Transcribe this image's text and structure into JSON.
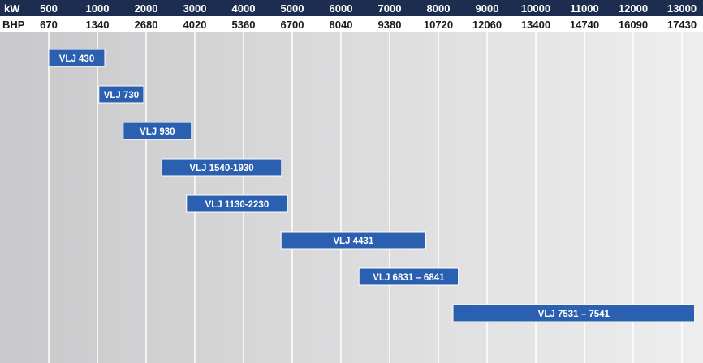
{
  "chart_data": {
    "type": "bar",
    "orientation": "horizontal-range",
    "axes": {
      "kw": {
        "label": "kW",
        "ticks": [
          "500",
          "1000",
          "2000",
          "3000",
          "4000",
          "5000",
          "6000",
          "7000",
          "8000",
          "9000",
          "10000",
          "11000",
          "12000",
          "13000"
        ]
      },
      "bhp": {
        "label": "BHP",
        "ticks": [
          "670",
          "1340",
          "2680",
          "4020",
          "5360",
          "6700",
          "8040",
          "9380",
          "10720",
          "12060",
          "13400",
          "14740",
          "16090",
          "17430"
        ]
      }
    },
    "series": [
      {
        "name": "VLJ 430",
        "start_kw": 500,
        "end_kw": 1150
      },
      {
        "name": "VLJ 730",
        "start_kw": 1030,
        "end_kw": 1950
      },
      {
        "name": "VLJ 930",
        "start_kw": 1530,
        "end_kw": 2930
      },
      {
        "name": "VLJ 1540-1930",
        "start_kw": 2320,
        "end_kw": 4780
      },
      {
        "name": "VLJ 1130-2230",
        "start_kw": 2830,
        "end_kw": 4900
      },
      {
        "name": "VLJ 4431",
        "start_kw": 4770,
        "end_kw": 7740
      },
      {
        "name": "VLJ 6831 – 6841",
        "start_kw": 6370,
        "end_kw": 8410
      },
      {
        "name": "VLJ 7531 – 7541",
        "start_kw": 8300,
        "end_kw": 13260
      }
    ],
    "colors": {
      "header_bg": "#1c2d4f",
      "bar_fill": "#2b5fb0",
      "bar_stroke": "#ffffff",
      "grid_line": "#ffffff",
      "band_dark": "#c9c9cb",
      "band_light": "#eeeeef",
      "bhp_row_bg": "#ffffff"
    }
  }
}
